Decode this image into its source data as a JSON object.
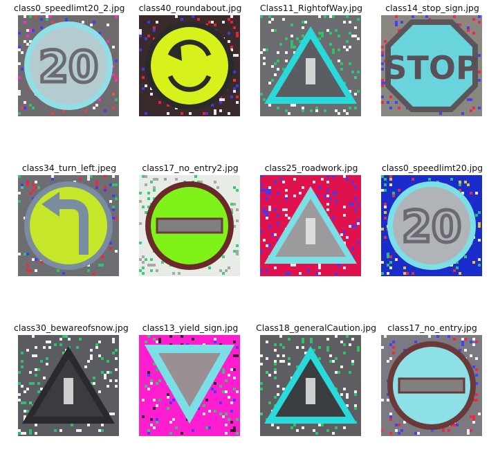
{
  "images": [
    {
      "title": "class0_speedlimt20_2.jpg",
      "sign": "speed",
      "bg": "#6e6a6e",
      "body": "#b4ccd0",
      "ring": "#8fe0e6",
      "text": "20",
      "noise": [
        "#ff2bd2",
        "#3a3cff",
        "#ffffff",
        "#2ccb6a",
        "#ff3b3b"
      ]
    },
    {
      "title": "class40_roundabout.jpg",
      "sign": "roundabout",
      "bg": "#3a2a2c",
      "body": "#d6f21a",
      "ring": "#2a2a2a",
      "noise": [
        "#ff1e3c",
        "#ffffff",
        "#3a3cff"
      ]
    },
    {
      "title": "Class11_RightofWay.jpg",
      "sign": "triangle",
      "bg": "#6a6c70",
      "body": "#5a5e62",
      "ring": "#2ad9d9",
      "noise": [
        "#ffffff",
        "#2ccb6a"
      ]
    },
    {
      "title": "class14_stop_sign.jpg",
      "sign": "stop",
      "bg": "#8a8680",
      "body": "#69d4dc",
      "ring": "#5a5558",
      "text": "STOP",
      "noise": [
        "#ff1e3c",
        "#3a3cff"
      ]
    },
    {
      "title": "class34_turn_left.jpeg",
      "sign": "turnleft",
      "bg": "#6d6e72",
      "body": "#c6e62a",
      "ring": "#7a8ca0",
      "noise": [
        "#3a3cff",
        "#ff1e3c",
        "#ffffff",
        "#2ccb6a"
      ]
    },
    {
      "title": "class17_no_entry2.jpg",
      "sign": "noentry",
      "bg": "#e8ece6",
      "body": "#7ff21a",
      "ring": "#6a2a2a",
      "noise": [
        "#2ccb6a",
        "#a0a0a0"
      ]
    },
    {
      "title": "class25_roadwork.jpg",
      "sign": "triangle",
      "bg": "#e0124e",
      "body": "#9c9a9c",
      "ring": "#7ae0e6",
      "noise": [
        "#ffffff",
        "#3a3cff"
      ]
    },
    {
      "title": "class0_speedlimt20.jpg",
      "sign": "speed",
      "bg": "#1a2ccc",
      "body": "#b0b4b8",
      "ring": "#7ae0e6",
      "text": "20",
      "noise": [
        "#ff2b2b",
        "#ffffff",
        "#2ccb6a",
        "#ffd21e"
      ]
    },
    {
      "title": "class30_bewareofsnow.jpg",
      "sign": "triangle",
      "bg": "#5a5c62",
      "body": "#3a3c40",
      "ring": "#2a2a2e",
      "noise": [
        "#ffffff",
        "#2ccb6a"
      ]
    },
    {
      "title": "class13_yield_sign.jpg",
      "sign": "yield",
      "bg": "#ff1ecf",
      "body": "#9a9094",
      "ring": "#7ae0e6",
      "noise": [
        "#3a3cff",
        "#ffffff",
        "#2ccb6a",
        "#1a1a1a"
      ]
    },
    {
      "title": "Class18_generalCaution.jpg",
      "sign": "triangle",
      "bg": "#5e5e62",
      "body": "#3a3e40",
      "ring": "#2ad9d9",
      "noise": [
        "#ffffff",
        "#2ccb6a"
      ]
    },
    {
      "title": "class17_no_entry.jpg",
      "sign": "noentry",
      "bg": "#7a7a80",
      "body": "#8ce0e6",
      "ring": "#6a3a3a",
      "noise": [
        "#3a3cff",
        "#ffffff",
        "#ff1e3c"
      ]
    }
  ]
}
